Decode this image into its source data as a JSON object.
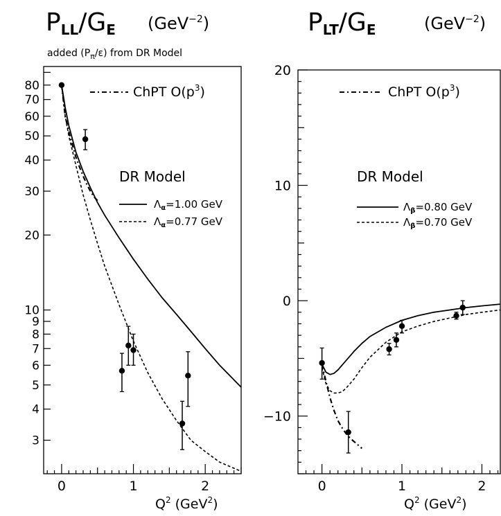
{
  "chart_data": [
    {
      "type": "line",
      "title_main": "P",
      "title_sub": "LL",
      "title_rest": "/G",
      "title_sub2": "E",
      "title_unit": "(GeV",
      "title_unit_exp": "−2",
      "title_unit_close": ")",
      "subtitle_a": "added  (P",
      "subtitle_pi": "π",
      "subtitle_b": "/ε)  from DR Model",
      "xlabel": "Q",
      "xlabel_exp": "2",
      "xlabel_unit": " (GeV",
      "xlabel_unit_exp": "2",
      "xlabel_unit_close": ")",
      "yscale": "log",
      "xlim": [
        -0.25,
        2.5
      ],
      "ylim": [
        2.2,
        95
      ],
      "xticks": [
        "0",
        "1",
        "2"
      ],
      "yticks": [
        "80",
        "70",
        "60",
        "50",
        "40",
        "30",
        "20",
        "10",
        "9",
        "8",
        "7",
        "6",
        "5",
        "4",
        "3"
      ],
      "legend_chpt": "ChPT O(p",
      "legend_chpt_exp": "3",
      "legend_chpt_close": ")",
      "legend_dr": "DR Model",
      "legend_solid": "=1.00 GeV",
      "legend_solid_sym": "Λ",
      "legend_solid_sub": "α",
      "legend_dashed": "=0.77 GeV",
      "legend_dashed_sym": "Λ",
      "legend_dashed_sub": "α",
      "series": [
        {
          "style": "solid",
          "x": [
            0,
            0.05,
            0.1,
            0.2,
            0.3,
            0.4,
            0.5,
            0.6,
            0.8,
            1.0,
            1.2,
            1.4,
            1.6,
            1.8,
            2.0,
            2.2,
            2.5
          ],
          "y": [
            80,
            65,
            55,
            43,
            36,
            31,
            27,
            24,
            19.5,
            16,
            13.3,
            11.2,
            9.6,
            8.2,
            7,
            6,
            4.9
          ]
        },
        {
          "style": "dashed",
          "x": [
            0,
            0.05,
            0.1,
            0.2,
            0.3,
            0.4,
            0.5,
            0.6,
            0.8,
            1.0,
            1.2,
            1.4,
            1.6,
            1.8,
            2.0,
            2.2,
            2.5
          ],
          "y": [
            80,
            60,
            50,
            38,
            29,
            23,
            18.5,
            15,
            10.5,
            7.5,
            5.6,
            4.4,
            3.6,
            3.0,
            2.7,
            2.45,
            2.25
          ]
        },
        {
          "style": "dashdot",
          "x": [
            0,
            0.05,
            0.1,
            0.15,
            0.2,
            0.25,
            0.3,
            0.35,
            0.4,
            0.45,
            0.5
          ],
          "y": [
            80,
            60,
            52,
            46,
            41,
            37.5,
            34.5,
            32,
            30,
            28.5,
            27.5
          ]
        }
      ],
      "points": [
        {
          "x": 0.0,
          "y": 80,
          "lo": 79,
          "hi": 81
        },
        {
          "x": 0.33,
          "y": 48.5,
          "lo": 44,
          "hi": 53
        },
        {
          "x": 0.84,
          "y": 5.7,
          "lo": 4.7,
          "hi": 6.7
        },
        {
          "x": 0.93,
          "y": 7.2,
          "lo": 6.0,
          "hi": 8.6
        },
        {
          "x": 1.0,
          "y": 6.9,
          "lo": 6.0,
          "hi": 8.0
        },
        {
          "x": 1.68,
          "y": 3.5,
          "lo": 2.75,
          "hi": 4.3
        },
        {
          "x": 1.76,
          "y": 5.45,
          "lo": 4.1,
          "hi": 6.8
        }
      ]
    },
    {
      "type": "line",
      "title_main": "P",
      "title_sub": "LT",
      "title_rest": "/G",
      "title_sub2": "E",
      "title_unit": "(GeV",
      "title_unit_exp": "−2",
      "title_unit_close": ")",
      "xlabel": "Q",
      "xlabel_exp": "2",
      "xlabel_unit": " (GeV",
      "xlabel_unit_exp": "2",
      "xlabel_unit_close": ")",
      "yscale": "linear",
      "xlim": [
        -0.3,
        2.23
      ],
      "ylim": [
        -15,
        20
      ],
      "xticks": [
        "0",
        "1",
        "2"
      ],
      "yticks": [
        "20",
        "10",
        "0",
        "−10"
      ],
      "ytick_values": [
        20,
        10,
        0,
        -10
      ],
      "legend_chpt": "ChPT O(p",
      "legend_chpt_exp": "3",
      "legend_chpt_close": ")",
      "legend_dr": "DR Model",
      "legend_solid": "=0.80 GeV",
      "legend_solid_sym": "Λ",
      "legend_solid_sub": "β",
      "legend_dashed": "=0.70 GeV",
      "legend_dashed_sym": "Λ",
      "legend_dashed_sub": "β",
      "series": [
        {
          "style": "solid",
          "x": [
            0,
            0.05,
            0.1,
            0.15,
            0.2,
            0.3,
            0.4,
            0.5,
            0.6,
            0.8,
            1.0,
            1.2,
            1.4,
            1.6,
            1.8,
            2.0,
            2.23
          ],
          "y": [
            -5.5,
            -6.2,
            -6.4,
            -6.3,
            -6.0,
            -5.2,
            -4.4,
            -3.7,
            -3.1,
            -2.3,
            -1.7,
            -1.3,
            -1.0,
            -0.8,
            -0.6,
            -0.45,
            -0.3
          ]
        },
        {
          "style": "dashed",
          "x": [
            0,
            0.05,
            0.1,
            0.15,
            0.2,
            0.25,
            0.3,
            0.4,
            0.5,
            0.6,
            0.8,
            1.0,
            1.2,
            1.4,
            1.6,
            1.8,
            2.0,
            2.23
          ],
          "y": [
            -5.8,
            -7.2,
            -7.8,
            -8.0,
            -8.0,
            -7.9,
            -7.6,
            -6.8,
            -5.8,
            -4.9,
            -3.6,
            -2.7,
            -2.2,
            -1.8,
            -1.5,
            -1.2,
            -1.0,
            -0.8
          ]
        },
        {
          "style": "dashdot",
          "x": [
            0,
            0.05,
            0.1,
            0.15,
            0.2,
            0.25,
            0.3,
            0.35,
            0.4,
            0.45,
            0.5
          ],
          "y": [
            -5.5,
            -7.0,
            -8.4,
            -9.5,
            -10.4,
            -11.0,
            -11.5,
            -11.9,
            -12.2,
            -12.5,
            -12.8
          ]
        }
      ],
      "points": [
        {
          "x": 0.0,
          "y": -5.4,
          "lo": -6.8,
          "hi": -4.1
        },
        {
          "x": 0.33,
          "y": -11.4,
          "lo": -13.2,
          "hi": -9.6
        },
        {
          "x": 0.84,
          "y": -4.2,
          "lo": -4.7,
          "hi": -3.7
        },
        {
          "x": 0.93,
          "y": -3.4,
          "lo": -4.0,
          "hi": -2.8
        },
        {
          "x": 1.0,
          "y": -2.2,
          "lo": -2.8,
          "hi": -1.7
        },
        {
          "x": 1.68,
          "y": -1.3,
          "lo": -1.6,
          "hi": -1.0
        },
        {
          "x": 1.76,
          "y": -0.6,
          "lo": -1.2,
          "hi": 0.0
        }
      ]
    }
  ]
}
